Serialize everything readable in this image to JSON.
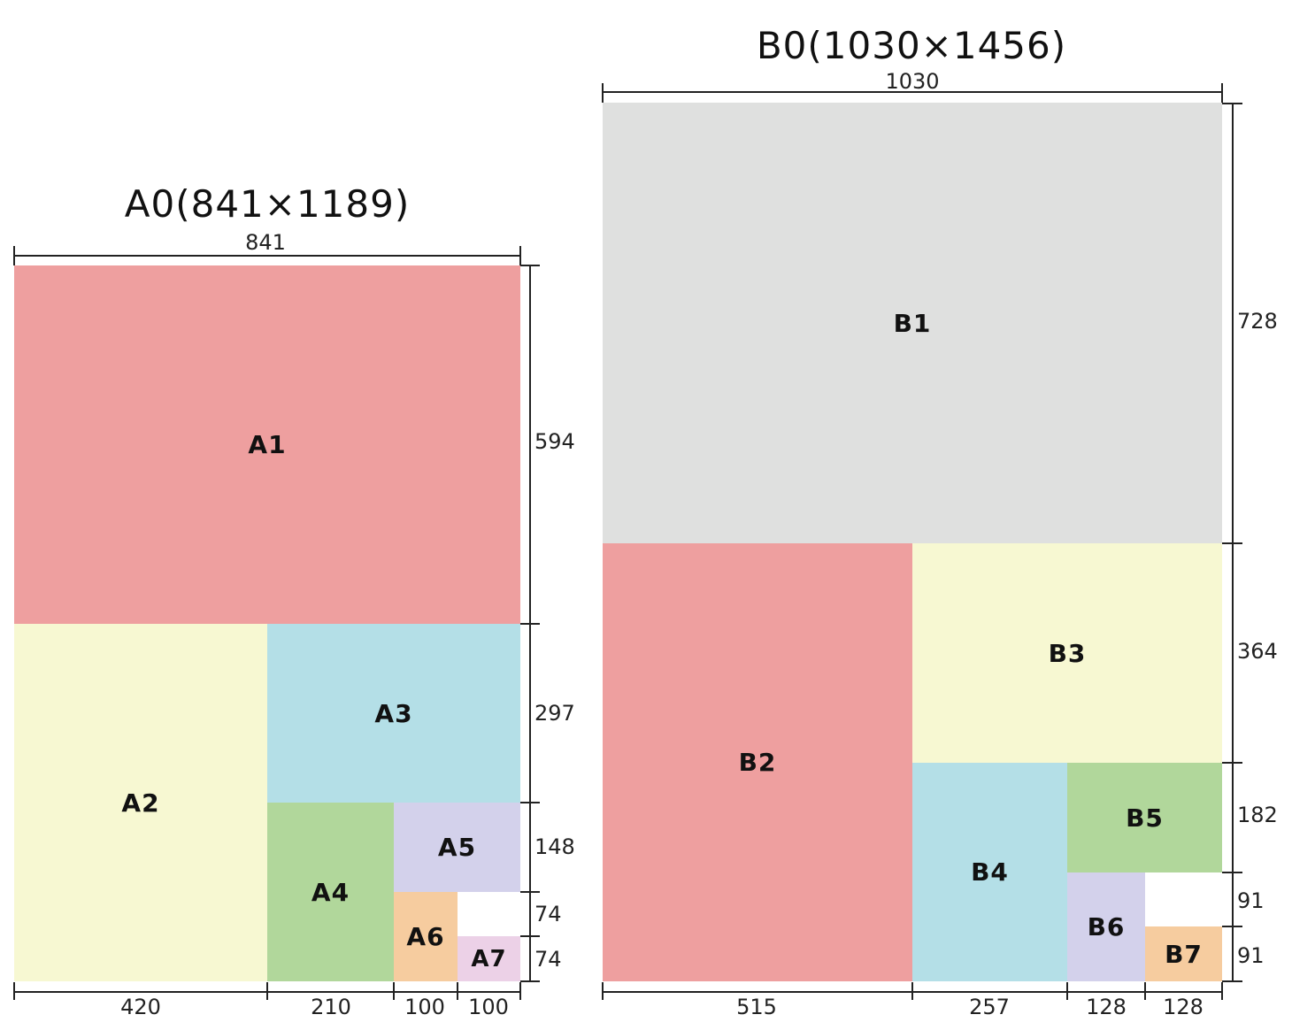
{
  "a_series": {
    "title": "A0(841×1189)",
    "width_label": "841",
    "sheets": {
      "a1": "A1",
      "a2": "A2",
      "a3": "A3",
      "a4": "A4",
      "a5": "A5",
      "a6": "A6",
      "a7": "A7"
    },
    "heights": [
      "594",
      "297",
      "148",
      "74",
      "74"
    ],
    "widths": [
      "420",
      "210",
      "100",
      "100"
    ]
  },
  "b_series": {
    "title": "B0(1030×1456)",
    "width_label": "1030",
    "sheets": {
      "b1": "B1",
      "b2": "B2",
      "b3": "B3",
      "b4": "B4",
      "b5": "B5",
      "b6": "B6",
      "b7": "B7"
    },
    "heights": [
      "728",
      "364",
      "182",
      "91",
      "91"
    ],
    "widths": [
      "515",
      "257",
      "128",
      "128"
    ]
  },
  "colors": {
    "red": "#ee9f9f",
    "yellow": "#f7f8d2",
    "blue": "#b4dfe7",
    "green": "#b1d79b",
    "lavender": "#d3d1eb",
    "orange": "#f6cc9f",
    "pink": "#ecd1e7",
    "gray": "#dfe0df"
  }
}
